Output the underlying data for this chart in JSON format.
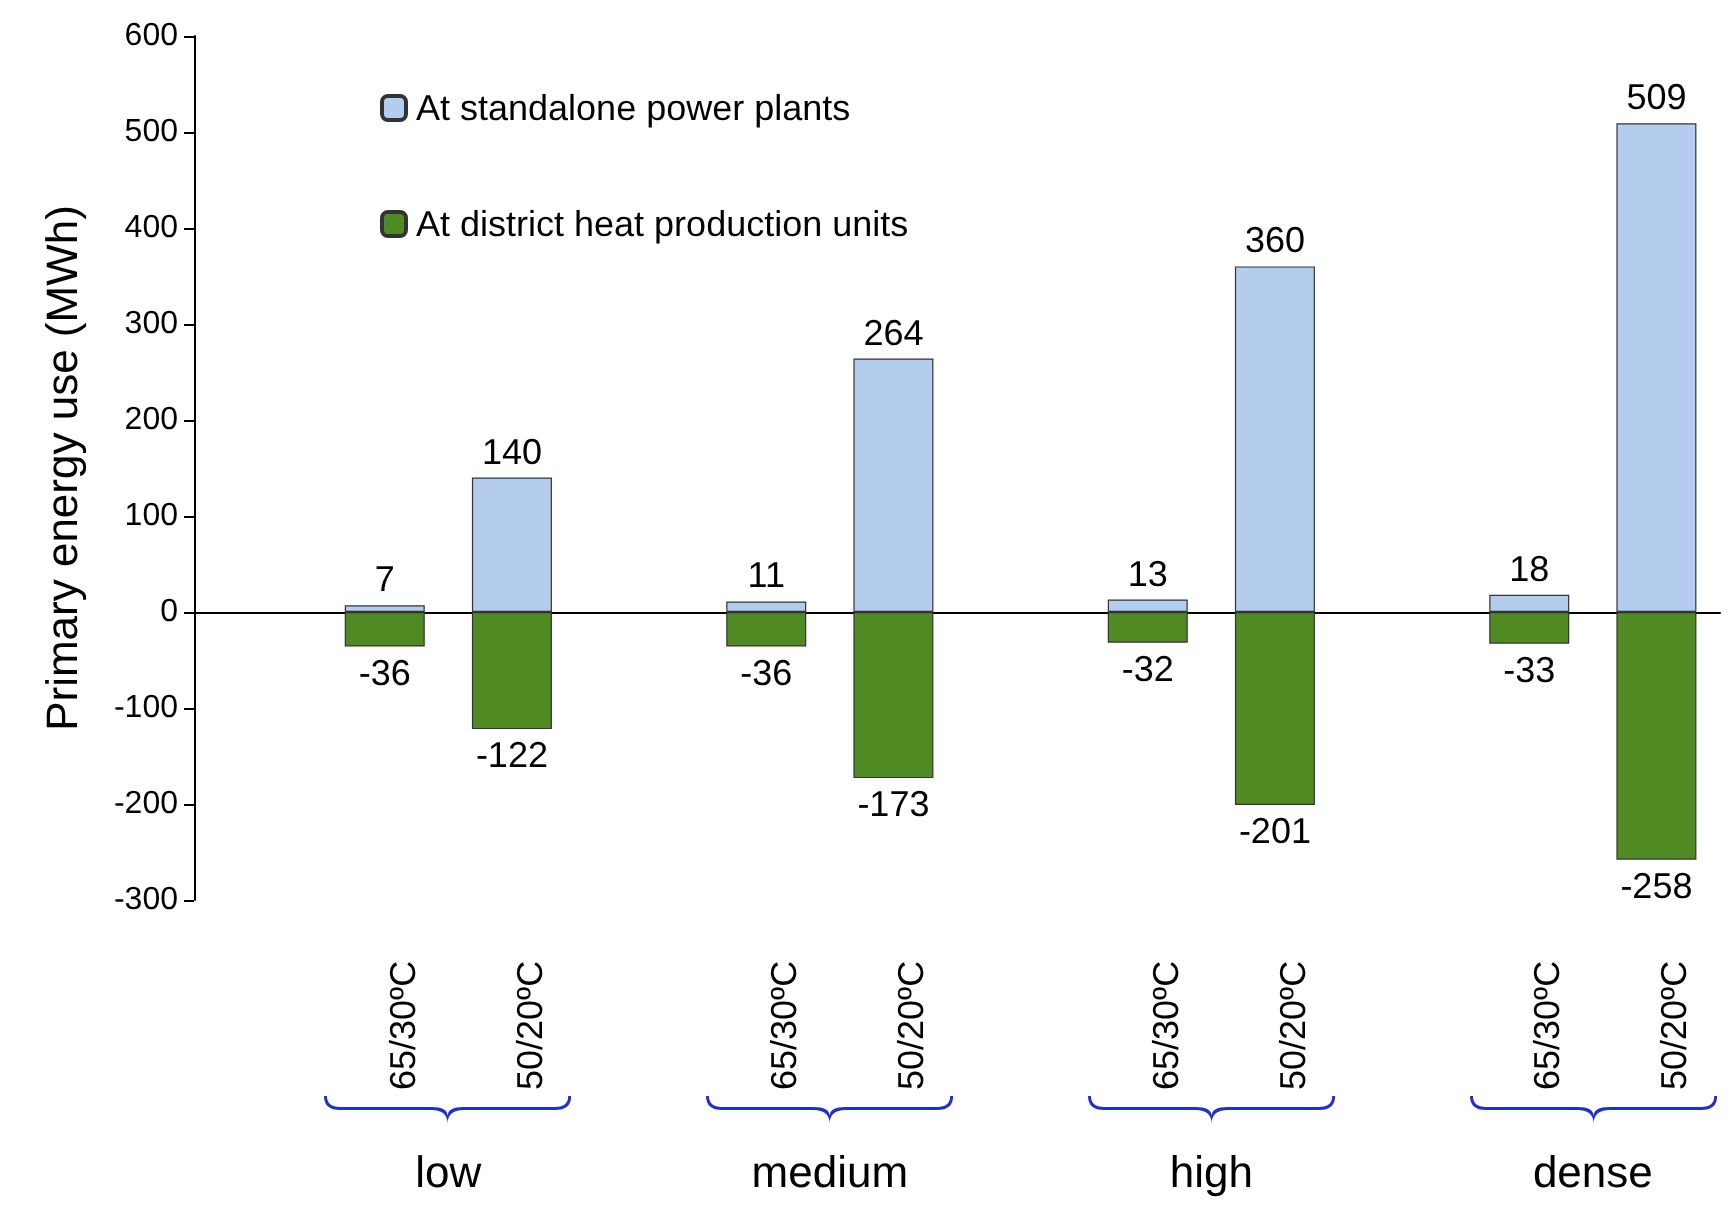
{
  "chart_data": {
    "type": "bar",
    "ylabel": "Primary energy use (MWh)",
    "categories": [
      null,
      "65/30ºC",
      "50/20ºC",
      null,
      "65/30ºC",
      "50/20ºC",
      null,
      "65/30ºC",
      "50/20ºC",
      null,
      "65/30ºC",
      "50/20ºC"
    ],
    "series": [
      {
        "name": "At standalone power plants",
        "color": "#b4cdee",
        "values": [
          null,
          7,
          140,
          null,
          11,
          264,
          null,
          13,
          360,
          null,
          18,
          509
        ]
      },
      {
        "name": "At district heat production units",
        "color": "#4f8a22",
        "values": [
          null,
          -36,
          -122,
          null,
          -36,
          -173,
          null,
          -32,
          -201,
          null,
          -33,
          -258
        ]
      }
    ],
    "stacked": true,
    "data_labels": true,
    "legend": "top left",
    "ylim": [
      -300,
      600
    ],
    "yticks": [
      -300,
      -200,
      -100,
      0,
      100,
      200,
      300,
      400,
      500,
      600
    ],
    "annotations": [
      "low",
      "medium",
      "high",
      "dense"
    ]
  }
}
